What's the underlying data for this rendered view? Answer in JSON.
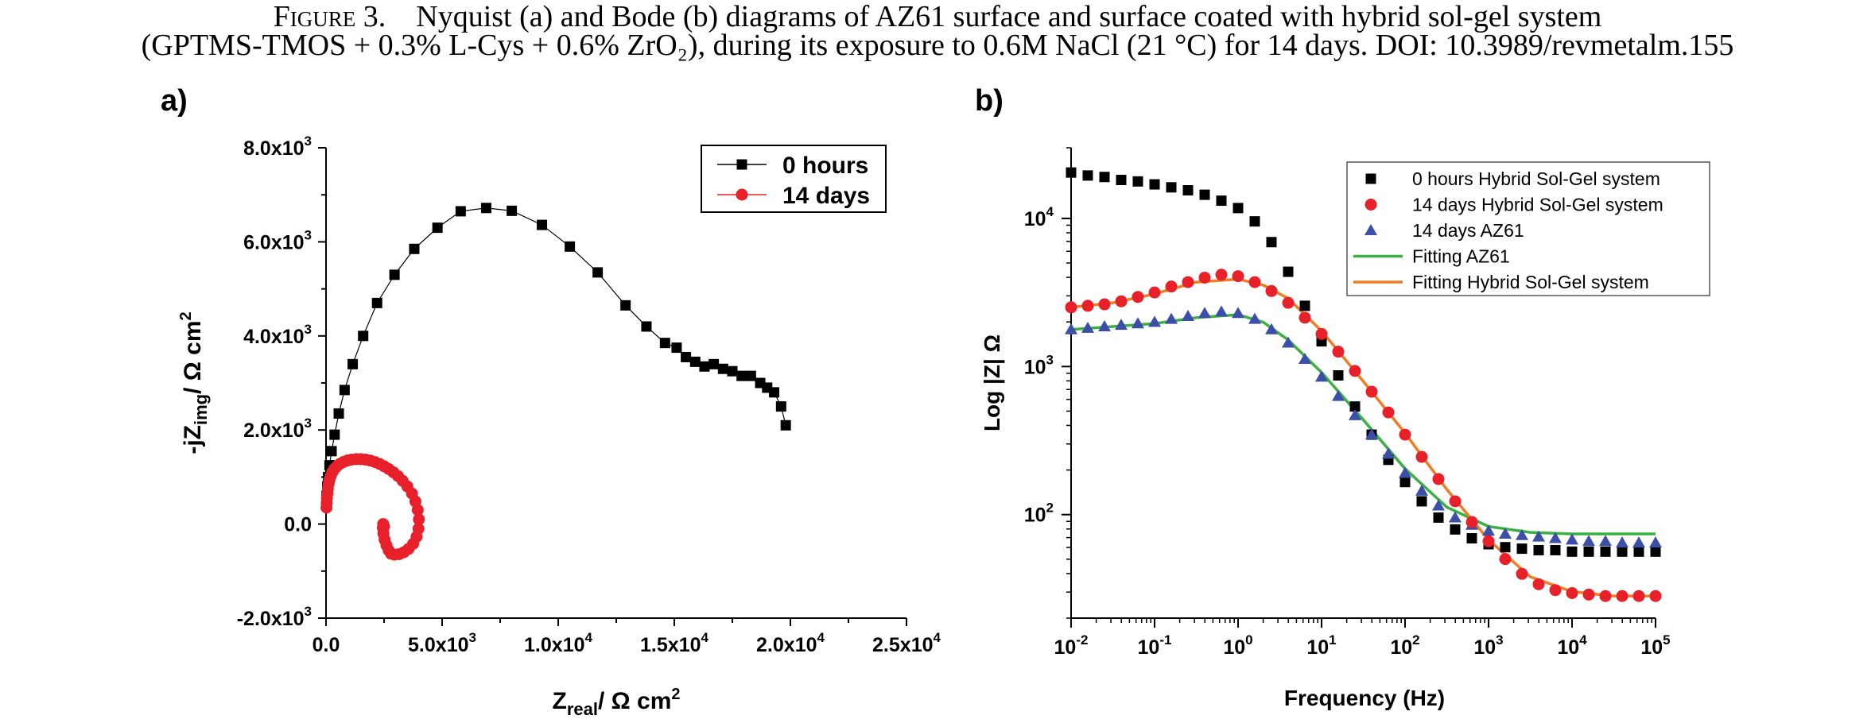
{
  "caption": {
    "label": "Figure 3.",
    "line1": "Nyquist (a) and Bode (b) diagrams of AZ61 surface and surface coated with hybrid sol-gel system",
    "line2": "(GPTMS-TMOS + 0.3% L-Cys + 0.6% ZrO₂), during its exposure to 0.6M NaCl (21 °C) for 14 days. DOI: 10.3989/revmetalm.155"
  },
  "panels": {
    "a": "a)",
    "b": "b)"
  },
  "chart_data": [
    {
      "type": "scatter",
      "panel": "a",
      "xlabel_main": "Z",
      "xlabel_sub": "real",
      "xlabel_unit": "/ Ω cm",
      "xlabel_sup": "2",
      "ylabel_main": "-jZ",
      "ylabel_sub": "img",
      "ylabel_unit": "/ Ω cm",
      "ylabel_sup": "2",
      "xlim": [
        0,
        25000
      ],
      "ylim": [
        -2000,
        8000
      ],
      "xticks": [
        {
          "value": 0,
          "label": "0.0"
        },
        {
          "value": 5000,
          "label": "5.0x10",
          "sup": "3"
        },
        {
          "value": 10000,
          "label": "1.0x10",
          "sup": "4"
        },
        {
          "value": 15000,
          "label": "1.5x10",
          "sup": "4"
        },
        {
          "value": 20000,
          "label": "2.0x10",
          "sup": "4"
        },
        {
          "value": 25000,
          "label": "2.5x10",
          "sup": "4"
        }
      ],
      "yticks": [
        {
          "value": -2000,
          "label": "-2.0x10",
          "sup": "3"
        },
        {
          "value": 0,
          "label": "0.0"
        },
        {
          "value": 2000,
          "label": "2.0x10",
          "sup": "3"
        },
        {
          "value": 4000,
          "label": "4.0x10",
          "sup": "3"
        },
        {
          "value": 6000,
          "label": "6.0x10",
          "sup": "3"
        },
        {
          "value": 8000,
          "label": "8.0x10",
          "sup": "3"
        }
      ],
      "legend_position": "top-right",
      "series": [
        {
          "name": "0 hours",
          "color": "#000000",
          "marker": "square",
          "line": true,
          "x": [
            20,
            50,
            90,
            150,
            240,
            370,
            550,
            800,
            1150,
            1600,
            2200,
            2950,
            3800,
            4800,
            5800,
            6900,
            8000,
            9300,
            10500,
            11700,
            12900,
            13800,
            14600,
            15100,
            15500,
            15900,
            16300,
            16700,
            17100,
            17500,
            17900,
            18300,
            18700,
            19000,
            19300,
            19600,
            19800
          ],
          "y": [
            600,
            800,
            1000,
            1250,
            1550,
            1900,
            2350,
            2850,
            3400,
            4000,
            4700,
            5300,
            5850,
            6300,
            6650,
            6720,
            6660,
            6360,
            5900,
            5350,
            4650,
            4200,
            3850,
            3750,
            3550,
            3450,
            3350,
            3400,
            3300,
            3250,
            3150,
            3150,
            3000,
            2900,
            2800,
            2500,
            2100
          ]
        },
        {
          "name": "14 days",
          "color": "#e8202a",
          "marker": "circle",
          "line": true,
          "x": [
            20,
            30,
            40,
            60,
            80,
            110,
            150,
            200,
            270,
            360,
            470,
            600,
            750,
            920,
            1100,
            1300,
            1500,
            1700,
            1900,
            2100,
            2300,
            2500,
            2700,
            2900,
            3100,
            3300,
            3500,
            3700,
            3850,
            3950,
            4000,
            3980,
            3900,
            3750,
            3550,
            3350,
            3150,
            2950,
            2800,
            2700,
            2600,
            2520,
            2470,
            2450,
            2460,
            2500
          ],
          "y": [
            350,
            450,
            550,
            650,
            750,
            850,
            940,
            1020,
            1100,
            1170,
            1230,
            1280,
            1320,
            1350,
            1370,
            1380,
            1380,
            1370,
            1350,
            1320,
            1280,
            1230,
            1170,
            1100,
            1020,
            920,
            800,
            650,
            480,
            300,
            100,
            -100,
            -270,
            -420,
            -530,
            -600,
            -640,
            -650,
            -630,
            -560,
            -450,
            -330,
            -200,
            -80,
            0,
            -50
          ]
        }
      ]
    },
    {
      "type": "scatter",
      "panel": "b",
      "xlabel": "Frequency (Hz)",
      "ylabel": "Log |Z| Ω",
      "xscale": "log",
      "yscale": "log",
      "xlim": [
        0.01,
        100000
      ],
      "ylim": [
        20,
        30000
      ],
      "xticks": [
        {
          "value": 0.01,
          "label": "10",
          "sup": "-2"
        },
        {
          "value": 0.1,
          "label": "10",
          "sup": "-1"
        },
        {
          "value": 1,
          "label": "10",
          "sup": "0"
        },
        {
          "value": 10,
          "label": "10",
          "sup": "1"
        },
        {
          "value": 100,
          "label": "10",
          "sup": "2"
        },
        {
          "value": 1000,
          "label": "10",
          "sup": "3"
        },
        {
          "value": 10000,
          "label": "10",
          "sup": "4"
        },
        {
          "value": 100000,
          "label": "10",
          "sup": "5"
        }
      ],
      "yticks": [
        {
          "value": 100,
          "label": "10",
          "sup": "2"
        },
        {
          "value": 1000,
          "label": "10",
          "sup": "3"
        },
        {
          "value": 10000,
          "label": "10",
          "sup": "4"
        }
      ],
      "legend_position": "top-right",
      "series": [
        {
          "name": "0 hours Hybrid Sol-Gel system",
          "color": "#000000",
          "marker": "square",
          "log_f": [
            -2.0,
            -1.8,
            -1.6,
            -1.4,
            -1.2,
            -1.0,
            -0.8,
            -0.6,
            -0.4,
            -0.2,
            0.0,
            0.2,
            0.4,
            0.6,
            0.8,
            1.0,
            1.2,
            1.4,
            1.6,
            1.8,
            2.0,
            2.2,
            2.4,
            2.6,
            2.8,
            3.0,
            3.2,
            3.4,
            3.6,
            3.8,
            4.0,
            4.2,
            4.4,
            4.6,
            4.8,
            5.0
          ],
          "log_z": [
            4.31,
            4.29,
            4.28,
            4.26,
            4.25,
            4.23,
            4.21,
            4.19,
            4.16,
            4.12,
            4.07,
            3.98,
            3.84,
            3.64,
            3.41,
            3.17,
            2.94,
            2.73,
            2.54,
            2.37,
            2.22,
            2.09,
            1.98,
            1.9,
            1.84,
            1.8,
            1.78,
            1.77,
            1.76,
            1.76,
            1.75,
            1.75,
            1.75,
            1.75,
            1.75,
            1.75
          ]
        },
        {
          "name": "14 days Hybrid Sol-Gel system",
          "color": "#e8202a",
          "marker": "circle",
          "log_f": [
            -2.0,
            -1.8,
            -1.6,
            -1.4,
            -1.2,
            -1.0,
            -0.8,
            -0.6,
            -0.4,
            -0.2,
            0.0,
            0.2,
            0.4,
            0.6,
            0.8,
            1.0,
            1.2,
            1.4,
            1.6,
            1.8,
            2.0,
            2.2,
            2.4,
            2.6,
            2.8,
            3.0,
            3.2,
            3.4,
            3.6,
            3.8,
            4.0,
            4.2,
            4.4,
            4.6,
            4.8,
            5.0
          ],
          "log_z": [
            3.4,
            3.41,
            3.42,
            3.44,
            3.47,
            3.5,
            3.54,
            3.57,
            3.6,
            3.62,
            3.61,
            3.57,
            3.51,
            3.43,
            3.33,
            3.22,
            3.1,
            2.97,
            2.83,
            2.69,
            2.54,
            2.39,
            2.24,
            2.09,
            1.95,
            1.82,
            1.7,
            1.6,
            1.53,
            1.49,
            1.47,
            1.46,
            1.45,
            1.45,
            1.45,
            1.45
          ]
        },
        {
          "name": "14 days AZ61",
          "color": "#3c4fa8",
          "marker": "triangle",
          "log_f": [
            -2.0,
            -1.8,
            -1.6,
            -1.4,
            -1.2,
            -1.0,
            -0.8,
            -0.6,
            -0.4,
            -0.2,
            0.0,
            0.2,
            0.4,
            0.6,
            0.8,
            1.0,
            1.2,
            1.4,
            1.6,
            1.8,
            2.0,
            2.2,
            2.4,
            2.6,
            2.8,
            3.0,
            3.2,
            3.4,
            3.6,
            3.8,
            4.0,
            4.2,
            4.4,
            4.6,
            4.8,
            5.0
          ],
          "log_z": [
            3.25,
            3.26,
            3.27,
            3.28,
            3.29,
            3.3,
            3.32,
            3.34,
            3.36,
            3.37,
            3.36,
            3.32,
            3.25,
            3.16,
            3.05,
            2.93,
            2.8,
            2.67,
            2.54,
            2.41,
            2.28,
            2.16,
            2.06,
            1.98,
            1.93,
            1.89,
            1.87,
            1.86,
            1.85,
            1.84,
            1.83,
            1.82,
            1.82,
            1.81,
            1.81,
            1.81
          ]
        },
        {
          "name": "Fitting AZ61",
          "color": "#3cb043",
          "marker": "line",
          "log_f": [
            -2.0,
            -1.5,
            -1.0,
            -0.5,
            0.0,
            0.3,
            0.6,
            1.0,
            1.5,
            2.0,
            2.5,
            3.0,
            3.5,
            4.0,
            4.5,
            5.0
          ],
          "log_z": [
            3.25,
            3.27,
            3.29,
            3.33,
            3.35,
            3.3,
            3.18,
            2.96,
            2.64,
            2.31,
            2.05,
            1.92,
            1.88,
            1.87,
            1.87,
            1.87
          ]
        },
        {
          "name": "Fitting Hybrid Sol-Gel system",
          "color": "#f07d23",
          "marker": "line",
          "log_f": [
            -2.0,
            -1.5,
            -1.0,
            -0.5,
            0.0,
            0.3,
            0.6,
            1.0,
            1.5,
            2.0,
            2.5,
            3.0,
            3.5,
            4.0,
            4.5,
            5.0
          ],
          "log_z": [
            3.4,
            3.43,
            3.49,
            3.57,
            3.59,
            3.55,
            3.46,
            3.24,
            2.9,
            2.55,
            2.17,
            1.83,
            1.58,
            1.48,
            1.45,
            1.45
          ]
        }
      ]
    }
  ]
}
